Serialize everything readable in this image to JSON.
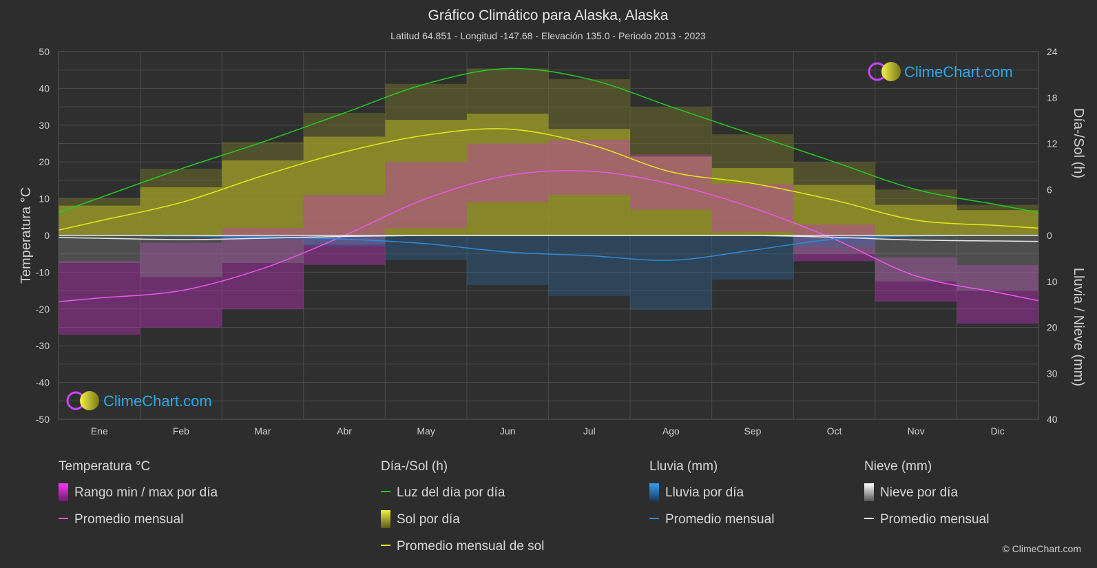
{
  "header": {
    "title": "Gráfico Climático para Alaska, Alaska",
    "subtitle": "Latitud 64.851 - Longitud -147.68 - Elevación 135.0 - Periodo 2013 - 2023"
  },
  "logo": {
    "text": "ClimeChart.com"
  },
  "copyright": "© ClimeChart.com",
  "chart_data": {
    "type": "line",
    "categories": [
      "Ene",
      "Feb",
      "Mar",
      "Abr",
      "May",
      "Jun",
      "Jul",
      "Ago",
      "Sep",
      "Oct",
      "Nov",
      "Dic"
    ],
    "axes": {
      "left": {
        "label": "Temperatura °C",
        "ticks": [
          50,
          40,
          30,
          20,
          10,
          0,
          -10,
          -20,
          -30,
          -40,
          -50
        ],
        "ylim": [
          -50,
          50
        ]
      },
      "right_top": {
        "label": "Día-/Sol (h)",
        "ticks": [
          24,
          18,
          12,
          6,
          0
        ],
        "ylim": [
          0,
          24
        ]
      },
      "right_bottom": {
        "label": "Lluvia / Nieve (mm)",
        "ticks": [
          10,
          20,
          30,
          40
        ],
        "ylim": [
          0,
          40
        ]
      }
    },
    "series": [
      {
        "name": "Luz del día por día",
        "axis": "right_top",
        "color": "#22cc22",
        "values": [
          4.9,
          8.7,
          12.2,
          16.0,
          19.8,
          21.8,
          20.4,
          16.8,
          13.2,
          9.6,
          6.0,
          4.0
        ]
      },
      {
        "name": "Promedio mensual de sol",
        "axis": "right_top",
        "color": "#e6e61e",
        "values": [
          1.9,
          4.3,
          7.8,
          10.9,
          13.1,
          13.9,
          11.9,
          8.3,
          6.8,
          4.6,
          2.0,
          1.3
        ]
      },
      {
        "name": "Promedio mensual",
        "group": "Temperatura °C",
        "axis": "left",
        "color": "#ee55ee",
        "values": [
          -17.0,
          -15.0,
          -9.0,
          0.0,
          10.0,
          16.3,
          17.5,
          14.0,
          7.5,
          -1.0,
          -11.0,
          -15.5
        ]
      },
      {
        "name": "Promedio mensual",
        "group": "Lluvia (mm)",
        "axis": "right_bottom",
        "color": "#2f8ad8",
        "values": [
          0.0,
          0.1,
          0.3,
          0.8,
          1.8,
          3.6,
          4.4,
          5.4,
          3.2,
          0.8,
          0.1,
          0.0
        ]
      },
      {
        "name": "Promedio mensual",
        "group": "Nieve (mm)",
        "axis": "right_bottom",
        "color": "#e8e8e8",
        "values": [
          0.6,
          0.9,
          0.6,
          0.2,
          0.0,
          0.0,
          0.0,
          0.0,
          0.0,
          0.4,
          1.0,
          1.2
        ]
      }
    ],
    "ranges": {
      "temp_max": [
        -7,
        -2,
        2,
        11,
        20,
        25,
        26,
        22,
        14,
        3,
        -6,
        -8
      ],
      "temp_min": [
        -27,
        -25,
        -20,
        -8,
        2,
        9,
        11,
        7,
        1,
        -7,
        -18,
        -24
      ]
    },
    "grid": true
  },
  "legend": {
    "columns": [
      {
        "head": "Temperatura °C",
        "items": [
          {
            "label": "Rango min / max por día",
            "swatch": "magenta-box",
            "color": "#dd22dd"
          },
          {
            "label": "Promedio mensual",
            "swatch": "line",
            "color": "#ee55ee"
          }
        ]
      },
      {
        "head": "Día-/Sol (h)",
        "items": [
          {
            "label": "Luz del día por día",
            "swatch": "line",
            "color": "#22cc22"
          },
          {
            "label": "Sol por día",
            "swatch": "yellow-box",
            "color": "#d6d62a"
          },
          {
            "label": "Promedio mensual de sol",
            "swatch": "line",
            "color": "#e6e61e"
          }
        ]
      },
      {
        "head": "Lluvia (mm)",
        "items": [
          {
            "label": "Lluvia por día",
            "swatch": "blue-box",
            "color": "#2f8ad8"
          },
          {
            "label": "Promedio mensual",
            "swatch": "line",
            "color": "#2f8ad8"
          }
        ]
      },
      {
        "head": "Nieve (mm)",
        "items": [
          {
            "label": "Nieve por día",
            "swatch": "white-box",
            "color": "#e0e0e0"
          },
          {
            "label": "Promedio mensual",
            "swatch": "line",
            "color": "#e8e8e8"
          }
        ]
      }
    ]
  }
}
